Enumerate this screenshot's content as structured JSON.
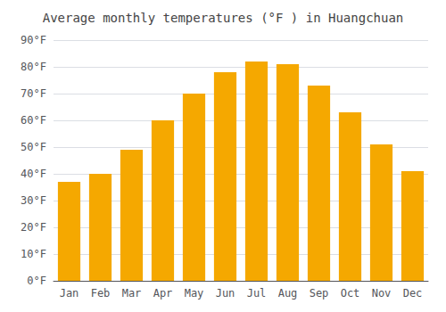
{
  "chart_data": {
    "type": "bar",
    "title": "Average monthly temperatures (°F ) in Huangchuan",
    "categories": [
      "Jan",
      "Feb",
      "Mar",
      "Apr",
      "May",
      "Jun",
      "Jul",
      "Aug",
      "Sep",
      "Oct",
      "Nov",
      "Dec"
    ],
    "values": [
      37,
      40,
      49,
      60,
      70,
      78,
      82,
      81,
      73,
      63,
      51,
      41
    ],
    "color": "#F5A800",
    "ylim": [
      0,
      90
    ],
    "yticks": [
      {
        "value": 0,
        "label": "0°F"
      },
      {
        "value": 10,
        "label": "10°F"
      },
      {
        "value": 20,
        "label": "20°F"
      },
      {
        "value": 30,
        "label": "30°F"
      },
      {
        "value": 40,
        "label": "40°F"
      },
      {
        "value": 50,
        "label": "50°F"
      },
      {
        "value": 60,
        "label": "60°F"
      },
      {
        "value": 70,
        "label": "70°F"
      },
      {
        "value": 80,
        "label": "80°F"
      },
      {
        "value": 90,
        "label": "90°F"
      }
    ],
    "grid": true
  }
}
